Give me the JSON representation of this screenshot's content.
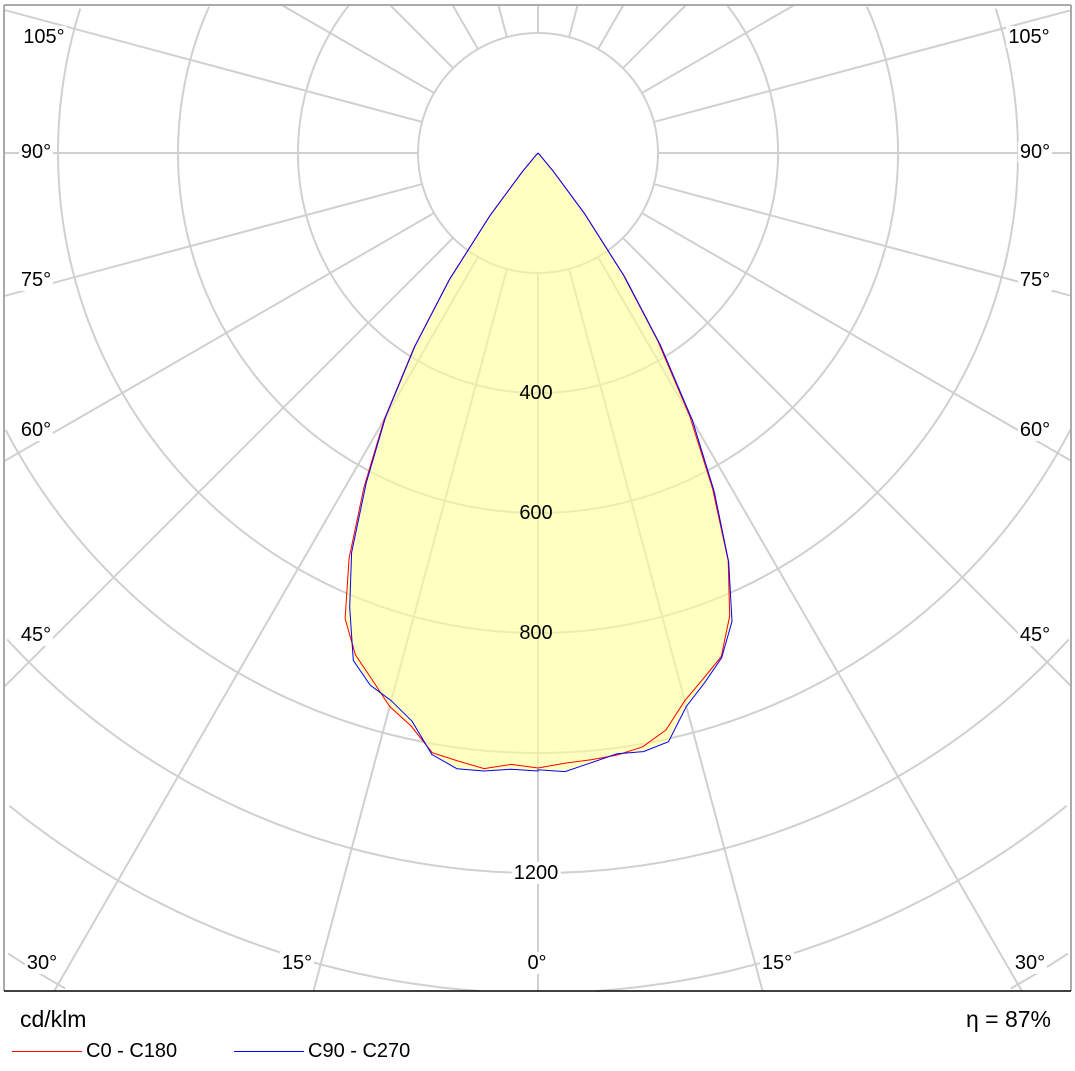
{
  "chart_data": {
    "type": "polar",
    "unit_label": "cd/klm",
    "efficiency_label": "η = 87%",
    "radial_ticks": [
      200,
      400,
      600,
      800,
      1000,
      1200,
      1400,
      1600,
      1800
    ],
    "radial_tick_labels": [
      "400",
      "600",
      "800",
      "1200"
    ],
    "angle_labels": {
      "left": [
        "105°",
        "90°",
        "75°",
        "60°",
        "45°",
        "30°"
      ],
      "bottom": [
        "15°",
        "0°",
        "15°"
      ],
      "right": [
        "105°",
        "90°",
        "75°",
        "60°",
        "45°",
        "30°"
      ]
    },
    "angular_grid_step_deg": 15,
    "grid": true,
    "fill_color": "#ffffc2",
    "grid_color": "#d0d0d0",
    "angles_deg": [
      0,
      2.5,
      5,
      7.5,
      10,
      12.5,
      15,
      17.5,
      20,
      22.5,
      25,
      27.5,
      30,
      32.5,
      35,
      37.5,
      40,
      42.5,
      45
    ],
    "series": [
      {
        "name": "C0 - C180",
        "color": "#ff0000",
        "c180_left": [
          1025,
          1020,
          1030,
          1022,
          1015,
          978,
          955,
          920,
          890,
          840,
          745,
          628,
          512,
          385,
          258,
          132,
          42,
          6,
          0
        ],
        "c0_right": [
          1025,
          1018,
          1015,
          1012,
          1005,
          985,
          945,
          918,
          893,
          835,
          750,
          630,
          505,
          372,
          248,
          126,
          38,
          5,
          0
        ]
      },
      {
        "name": "C90 - C270",
        "color": "#0000ff",
        "c270_left": [
          1030,
          1028,
          1034,
          1035,
          1018,
          970,
          945,
          930,
          900,
          820,
          735,
          620,
          508,
          382,
          256,
          130,
          40,
          5,
          0
        ],
        "c90_right": [
          1028,
          1032,
          1020,
          1010,
          1013,
          1005,
          955,
          925,
          895,
          845,
          752,
          636,
          515,
          380,
          252,
          128,
          40,
          5,
          0
        ]
      }
    ]
  }
}
